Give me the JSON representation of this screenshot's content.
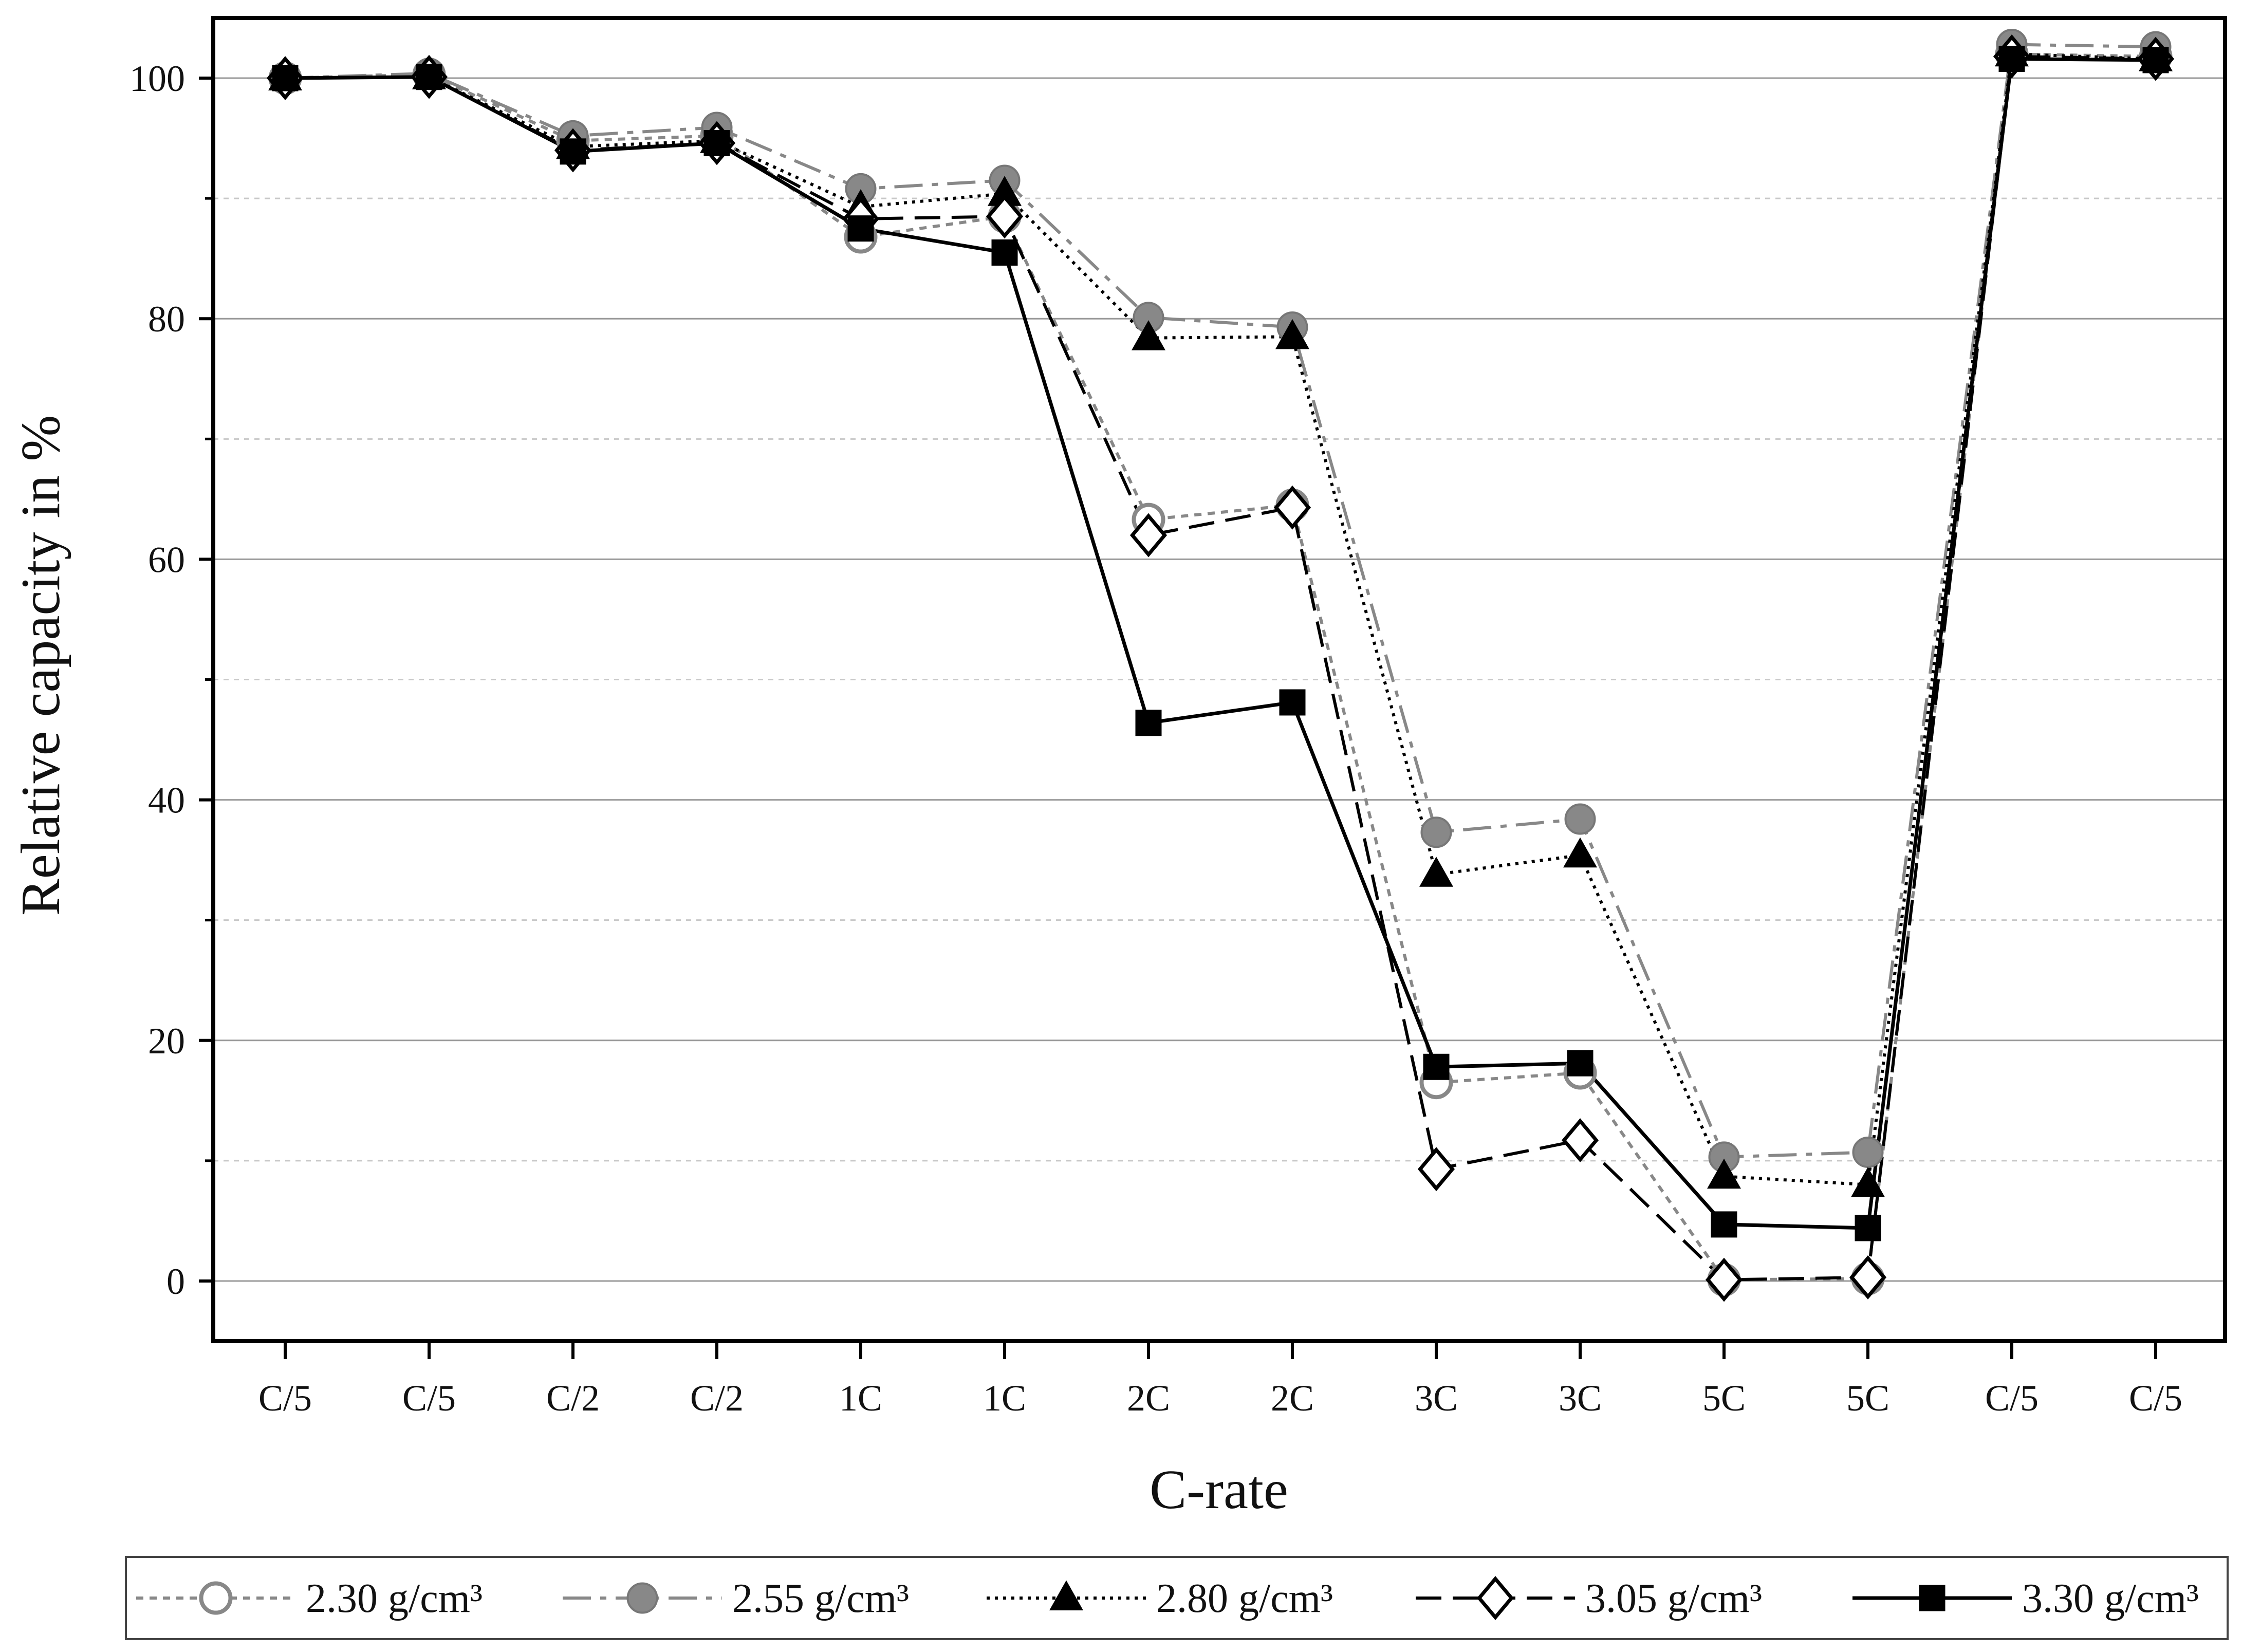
{
  "chart_data": {
    "type": "line",
    "title": "",
    "xlabel": "C-rate",
    "ylabel": "Relative capacity in %",
    "categories": [
      "C/5",
      "C/5",
      "C/2",
      "C/2",
      "1C",
      "1C",
      "2C",
      "2C",
      "3C",
      "3C",
      "5C",
      "5C",
      "C/5",
      "C/5"
    ],
    "yticks": [
      "0",
      "20",
      "40",
      "60",
      "80",
      "100"
    ],
    "ylim": [
      -5,
      105
    ],
    "grid": true,
    "legend_position": "bottom",
    "series": [
      {
        "name": "2.30 g/cm³",
        "marker": "circle-open",
        "line": "short-dash",
        "color": "#888888",
        "values": [
          100,
          100.3,
          94.8,
          95.2,
          86.8,
          88.5,
          63.3,
          64.5,
          16.5,
          17.3,
          0.1,
          0.2,
          102.0,
          101.8
        ]
      },
      {
        "name": "2.55 g/cm³",
        "marker": "circle-filled",
        "line": "dash-dot",
        "color": "#888888",
        "values": [
          100,
          100.4,
          95.2,
          95.9,
          90.8,
          91.5,
          80.1,
          79.3,
          37.3,
          38.4,
          10.3,
          10.7,
          102.8,
          102.6
        ]
      },
      {
        "name": "2.80 g/cm³",
        "marker": "triangle-filled",
        "line": "dotted",
        "color": "#000000",
        "values": [
          100,
          100.1,
          94.3,
          94.8,
          89.3,
          90.4,
          78.4,
          78.5,
          33.8,
          35.4,
          8.7,
          8.0,
          102.0,
          101.6
        ]
      },
      {
        "name": "3.05 g/cm³",
        "marker": "diamond-open",
        "line": "long-dash",
        "color": "#000000",
        "values": [
          100,
          100.1,
          94.0,
          94.6,
          88.3,
          88.5,
          62.0,
          64.3,
          9.3,
          11.7,
          0.1,
          0.3,
          101.8,
          101.6
        ]
      },
      {
        "name": "3.30 g/cm³",
        "marker": "square-filled",
        "line": "solid",
        "color": "#000000",
        "values": [
          100,
          100.1,
          93.9,
          94.6,
          87.5,
          85.5,
          46.4,
          48.1,
          17.8,
          18.1,
          4.7,
          4.4,
          101.6,
          101.5
        ]
      }
    ]
  }
}
